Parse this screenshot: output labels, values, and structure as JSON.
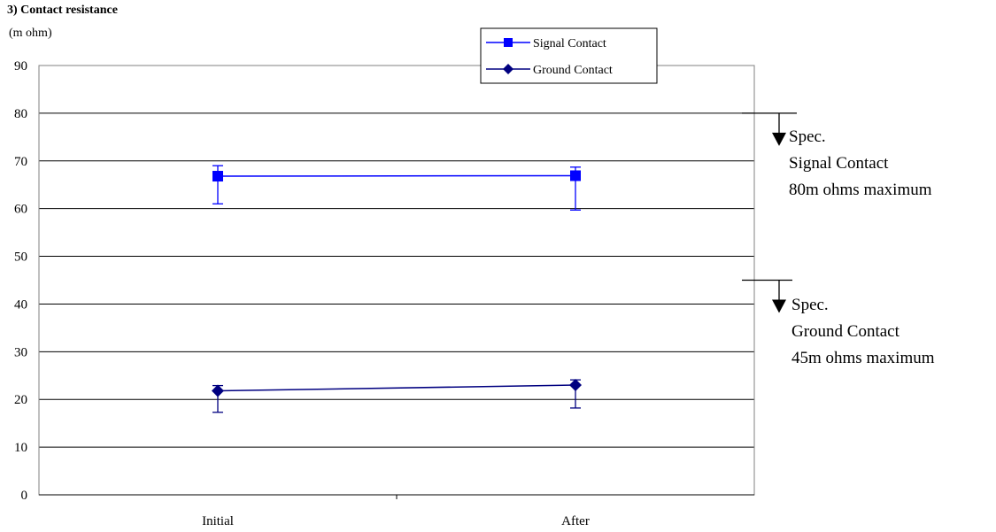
{
  "chart_data": {
    "type": "line",
    "title": "3) Contact resistance",
    "ylabel": "(m ohm)",
    "xlabel": "",
    "categories": [
      "Initial",
      "After"
    ],
    "ylim": [
      0,
      90
    ],
    "yticks": [
      0,
      10,
      20,
      30,
      40,
      50,
      60,
      70,
      80,
      90
    ],
    "grid": true,
    "legend_position": "top-center",
    "series": [
      {
        "name": "Signal Contact",
        "marker": "square",
        "color": "#0000ff",
        "values": [
          66.8,
          66.9
        ],
        "error_high": [
          69.0,
          68.7
        ],
        "error_low": [
          61.0,
          59.7
        ]
      },
      {
        "name": "Ground Contact",
        "marker": "diamond",
        "color": "#000080",
        "values": [
          21.8,
          23.0
        ],
        "error_high": [
          22.9,
          24.1
        ],
        "error_low": [
          17.3,
          18.2
        ]
      }
    ],
    "annotations": [
      {
        "id": "spec-signal",
        "level": 80,
        "lines": [
          "Spec.",
          "Signal Contact",
          "80m ohms maximum"
        ]
      },
      {
        "id": "spec-ground",
        "level": 45,
        "lines": [
          "Spec.",
          "Ground Contact",
          "45m ohms maximum"
        ]
      }
    ]
  }
}
